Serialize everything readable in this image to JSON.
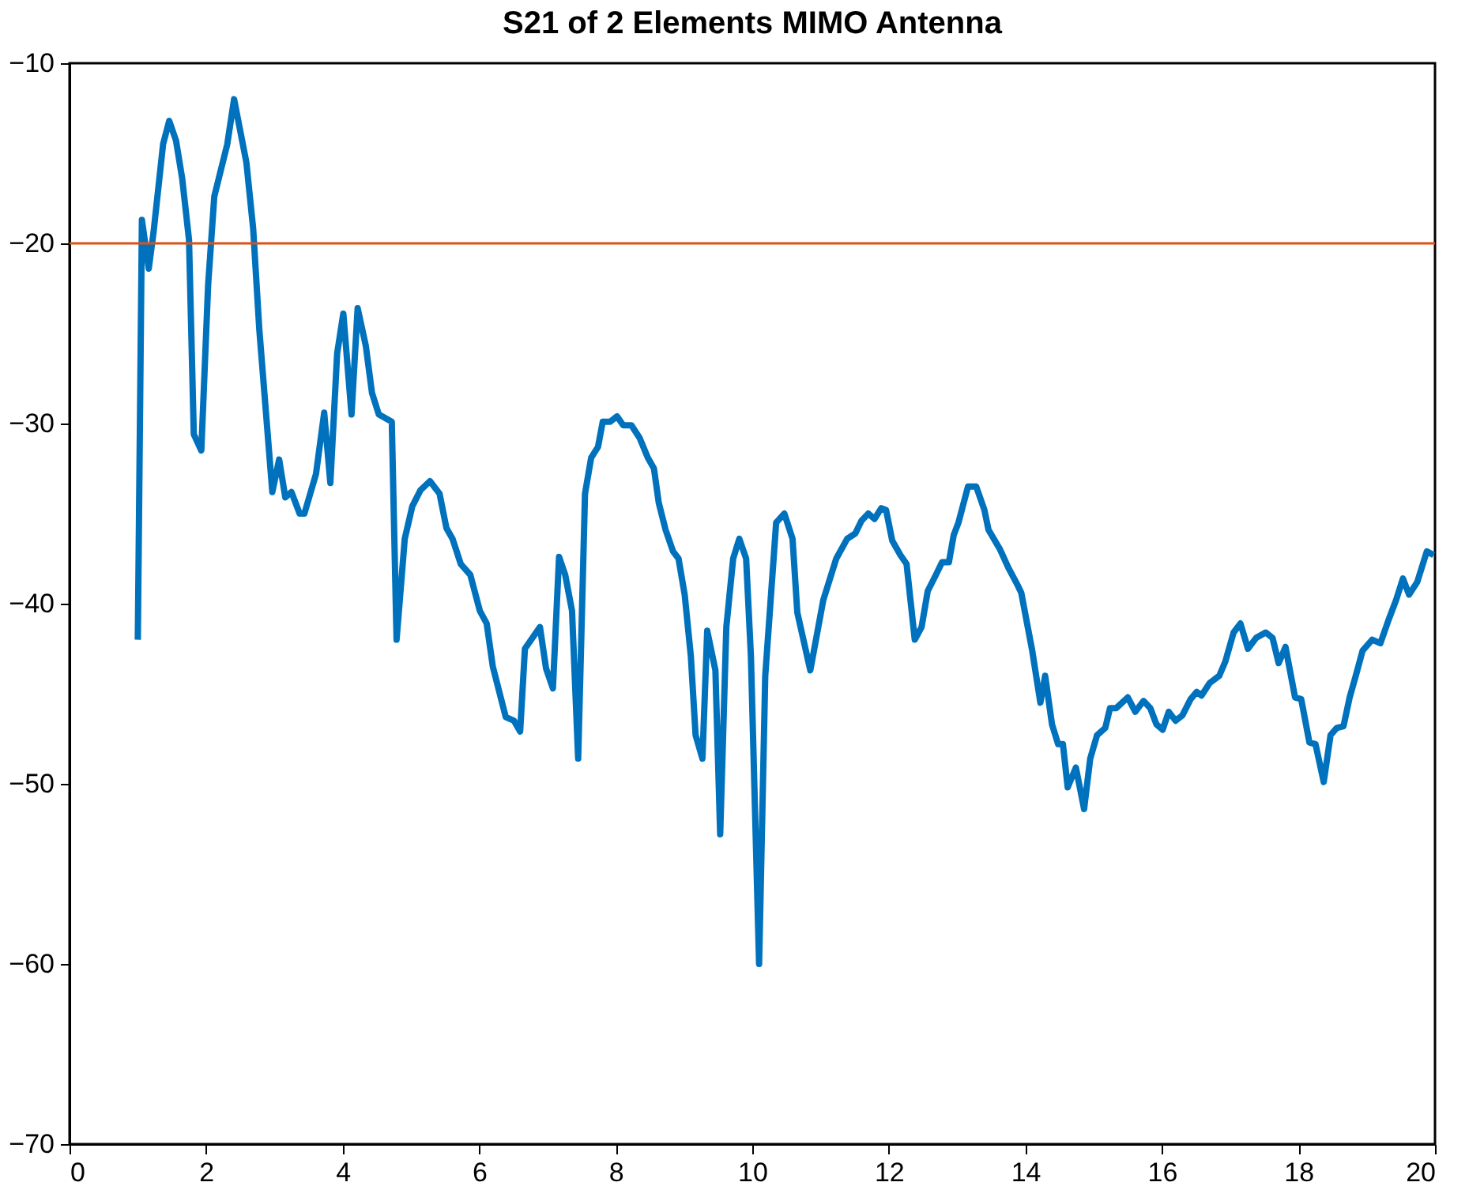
{
  "chart_data": {
    "type": "line",
    "title": "S21 of  2  Elements MIMO Antenna",
    "xlim": [
      0,
      20
    ],
    "xticks": [
      0,
      2,
      4,
      6,
      8,
      10,
      12,
      14,
      16,
      18,
      20
    ],
    "ylim": [
      -70,
      -10
    ],
    "yticks": [
      -70,
      -60,
      -50,
      -40,
      -30,
      -20,
      -10
    ],
    "grid": false,
    "marker": "none",
    "line_style": "solid",
    "ref_lines": [
      {
        "axis": "y",
        "value": -20,
        "color": "#d95319"
      }
    ],
    "series": [
      {
        "color": "#0072bd",
        "x": [
          1.0,
          1.06,
          1.16,
          1.23,
          1.37,
          1.46,
          1.56,
          1.65,
          1.75,
          1.82,
          1.93,
          2.03,
          2.12,
          2.31,
          2.41,
          2.59,
          2.69,
          2.78,
          2.97,
          3.07,
          3.16,
          3.25,
          3.37,
          3.44,
          3.61,
          3.73,
          3.82,
          3.92,
          4.01,
          4.13,
          4.22,
          4.34,
          4.43,
          4.53,
          4.72,
          4.79,
          4.91,
          5.02,
          5.14,
          5.28,
          5.42,
          5.52,
          5.61,
          5.73,
          5.87,
          6.01,
          6.11,
          6.2,
          6.39,
          6.51,
          6.6,
          6.67,
          6.89,
          6.98,
          7.08,
          7.17,
          7.26,
          7.36,
          7.45,
          7.55,
          7.64,
          7.74,
          7.81,
          7.92,
          8.02,
          8.11,
          8.23,
          8.35,
          8.47,
          8.56,
          8.63,
          8.73,
          8.84,
          8.92,
          9.01,
          9.1,
          9.17,
          9.27,
          9.34,
          9.46,
          9.53,
          9.62,
          9.72,
          9.81,
          9.91,
          9.98,
          10.1,
          10.19,
          10.35,
          10.47,
          10.59,
          10.66,
          10.85,
          11.04,
          11.23,
          11.39,
          11.51,
          11.6,
          11.7,
          11.79,
          11.89,
          11.96,
          12.05,
          12.17,
          12.26,
          12.38,
          12.48,
          12.57,
          12.69,
          12.78,
          12.88,
          12.95,
          13.02,
          13.16,
          13.28,
          13.4,
          13.46,
          13.63,
          13.75,
          13.89,
          13.94,
          14.1,
          14.22,
          14.29,
          14.39,
          14.48,
          14.55,
          14.62,
          14.74,
          14.86,
          14.95,
          15.05,
          15.17,
          15.24,
          15.33,
          15.5,
          15.61,
          15.73,
          15.83,
          15.92,
          16.01,
          16.1,
          16.2,
          16.3,
          16.42,
          16.51,
          16.58,
          16.7,
          16.84,
          16.93,
          17.05,
          17.15,
          17.26,
          17.38,
          17.52,
          17.62,
          17.71,
          17.81,
          17.95,
          18.04,
          18.16,
          18.25,
          18.37,
          18.47,
          18.56,
          18.66,
          18.75,
          18.84,
          18.94,
          19.08,
          19.2,
          19.32,
          19.43,
          19.53,
          19.62,
          19.74,
          19.88,
          19.98
        ],
        "values": [
          -42,
          -18.7,
          -21.4,
          -19.4,
          -14.5,
          -13.2,
          -14.3,
          -16.4,
          -19.8,
          -30.6,
          -31.5,
          -22.3,
          -17.4,
          -14.5,
          -12,
          -15.5,
          -19.2,
          -24.8,
          -33.8,
          -32,
          -34.1,
          -33.8,
          -35,
          -35,
          -32.8,
          -29.4,
          -33.3,
          -26.1,
          -23.9,
          -29.5,
          -23.6,
          -25.7,
          -28.3,
          -29.5,
          -29.9,
          -42,
          -36.4,
          -34.6,
          -33.7,
          -33.2,
          -33.9,
          -35.8,
          -36.4,
          -37.8,
          -38.4,
          -40.4,
          -41.1,
          -43.5,
          -46.3,
          -46.5,
          -47.1,
          -42.5,
          -41.3,
          -43.6,
          -44.7,
          -37.4,
          -38.4,
          -40.4,
          -48.6,
          -33.9,
          -31.9,
          -31.3,
          -29.9,
          -29.9,
          -29.6,
          -30.1,
          -30.1,
          -30.8,
          -31.9,
          -32.5,
          -34.4,
          -35.9,
          -37.1,
          -37.5,
          -39.5,
          -42.9,
          -47.3,
          -48.6,
          -41.5,
          -43.7,
          -52.8,
          -41.3,
          -37.5,
          -36.4,
          -37.5,
          -42.9,
          -60,
          -44,
          -35.5,
          -35,
          -36.4,
          -40.5,
          -43.7,
          -39.8,
          -37.5,
          -36.4,
          -36.1,
          -35.4,
          -35,
          -35.3,
          -34.7,
          -34.8,
          -36.5,
          -37.3,
          -37.8,
          -42,
          -41.3,
          -39.3,
          -38.4,
          -37.7,
          -37.7,
          -36.2,
          -35.5,
          -33.5,
          -33.5,
          -34.8,
          -35.9,
          -37,
          -38,
          -39,
          -39.4,
          -42.6,
          -45.5,
          -44,
          -46.7,
          -47.8,
          -47.8,
          -50.2,
          -49.1,
          -51.4,
          -48.6,
          -47.3,
          -46.9,
          -45.8,
          -45.8,
          -45.2,
          -46,
          -45.4,
          -45.8,
          -46.7,
          -47,
          -46,
          -46.5,
          -46.2,
          -45.3,
          -44.9,
          -45.1,
          -44.4,
          -44,
          -43.2,
          -41.6,
          -41.1,
          -42.5,
          -41.9,
          -41.6,
          -41.9,
          -43.3,
          -42.4,
          -45.2,
          -45.3,
          -47.7,
          -47.8,
          -49.9,
          -47.3,
          -46.9,
          -46.8,
          -45.2,
          -44,
          -42.6,
          -42,
          -42.2,
          -40.9,
          -39.8,
          -38.6,
          -39.5,
          -38.8,
          -37.1,
          -37.3
        ]
      }
    ]
  }
}
